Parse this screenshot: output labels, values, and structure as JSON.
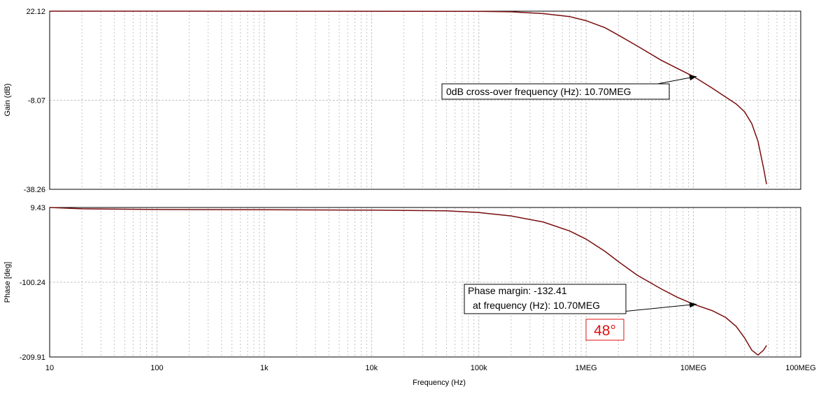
{
  "colors": {
    "trace": "#7a0d0d",
    "grid": "#c4c4c4",
    "highlight": "#e01010"
  },
  "chart_data": [
    {
      "type": "line",
      "ylabel": "Gain (dB)",
      "xlabel": "",
      "x_scale": "log",
      "xlim": [
        10,
        100000000
      ],
      "ylim": [
        -38.26,
        22.12
      ],
      "yticks": [
        "22.12",
        "-8.07",
        "-38.26"
      ],
      "grid": true,
      "series": [
        {
          "x": [
            10,
            1000,
            100000,
            200000,
            400000,
            700000,
            1000000,
            1500000,
            2000000,
            3000000,
            5000000,
            7000000,
            10000000,
            15000000,
            20000000,
            25000000,
            30000000,
            35000000,
            40000000,
            45000000,
            48000000
          ],
          "y": [
            22.12,
            22.1,
            22.05,
            21.9,
            21.3,
            20.3,
            18.9,
            16.5,
            14.0,
            10.3,
            5.5,
            2.8,
            0.0,
            -4.0,
            -7.0,
            -9.3,
            -12.0,
            -16.0,
            -22.0,
            -31.0,
            -36.5
          ]
        }
      ],
      "annotations": [
        {
          "text": "0dB cross-over frequency (Hz): 10.70MEG",
          "x": 10700000,
          "y": 0.0
        }
      ]
    },
    {
      "type": "line",
      "ylabel": "Phase [deg]",
      "xlabel": "Frequency (Hz)",
      "x_scale": "log",
      "xlim": [
        10,
        100000000
      ],
      "ylim": [
        -209.91,
        9.43
      ],
      "yticks": [
        "9.43",
        "-100.24",
        "-209.91"
      ],
      "xticks": [
        "10",
        "100",
        "1k",
        "10k",
        "100k",
        "1MEG",
        "10MEG",
        "100MEG"
      ],
      "grid": true,
      "series": [
        {
          "x": [
            10,
            20,
            100,
            1000,
            10000,
            50000,
            100000,
            200000,
            400000,
            700000,
            1000000,
            1500000,
            2000000,
            3000000,
            5000000,
            7000000,
            10000000,
            15000000,
            20000000,
            25000000,
            30000000,
            35000000,
            40000000,
            45000000,
            48000000
          ],
          "y": [
            9.43,
            7.5,
            6.5,
            6.0,
            5.5,
            4.5,
            2.0,
            -3.0,
            -12.0,
            -25.0,
            -37.0,
            -55.0,
            -70.0,
            -90.0,
            -110.0,
            -122.0,
            -132.41,
            -142.0,
            -152.0,
            -165.0,
            -182.0,
            -200.0,
            -207.0,
            -200.0,
            -193.0
          ]
        }
      ],
      "annotations": [
        {
          "text_line1": "Phase margin: -132.41",
          "text_line2": "at frequency (Hz): 10.70MEG",
          "x": 10700000,
          "y": -132.41
        }
      ],
      "highlight": "48°"
    }
  ]
}
